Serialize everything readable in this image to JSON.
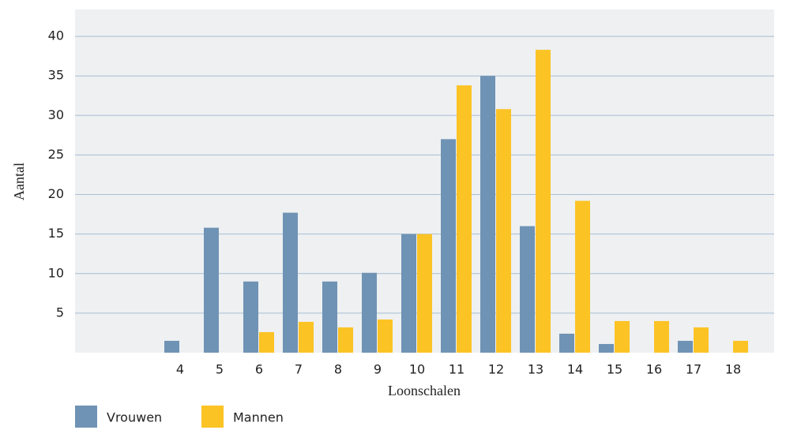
{
  "chart_data": {
    "type": "bar",
    "x_label": "Loonschalen",
    "y_label": "Aantal",
    "categories": [
      null,
      null,
      "4",
      "5",
      "6",
      "7",
      "8",
      "9",
      "10",
      "11",
      "12",
      "13",
      "14",
      "15",
      "16",
      "17",
      "18"
    ],
    "series": [
      {
        "name": "Vrouwen",
        "color": "#6f93b4",
        "values": [
          null,
          null,
          1.5,
          15.8,
          9,
          17.7,
          9,
          10.1,
          15,
          27,
          35,
          16,
          2.4,
          1.1,
          null,
          1.5,
          null
        ]
      },
      {
        "name": "Mannen",
        "color": "#fcc325",
        "values": [
          null,
          null,
          null,
          null,
          2.6,
          3.9,
          3.2,
          4.2,
          15,
          33.8,
          30.8,
          38.3,
          19.2,
          4,
          4,
          3.2,
          1.5
        ]
      }
    ],
    "ylim": [
      0,
      43.4
    ],
    "yticks": [
      5,
      10,
      15,
      20,
      25,
      30,
      35,
      40
    ],
    "grid": true,
    "legend": "bottom"
  }
}
